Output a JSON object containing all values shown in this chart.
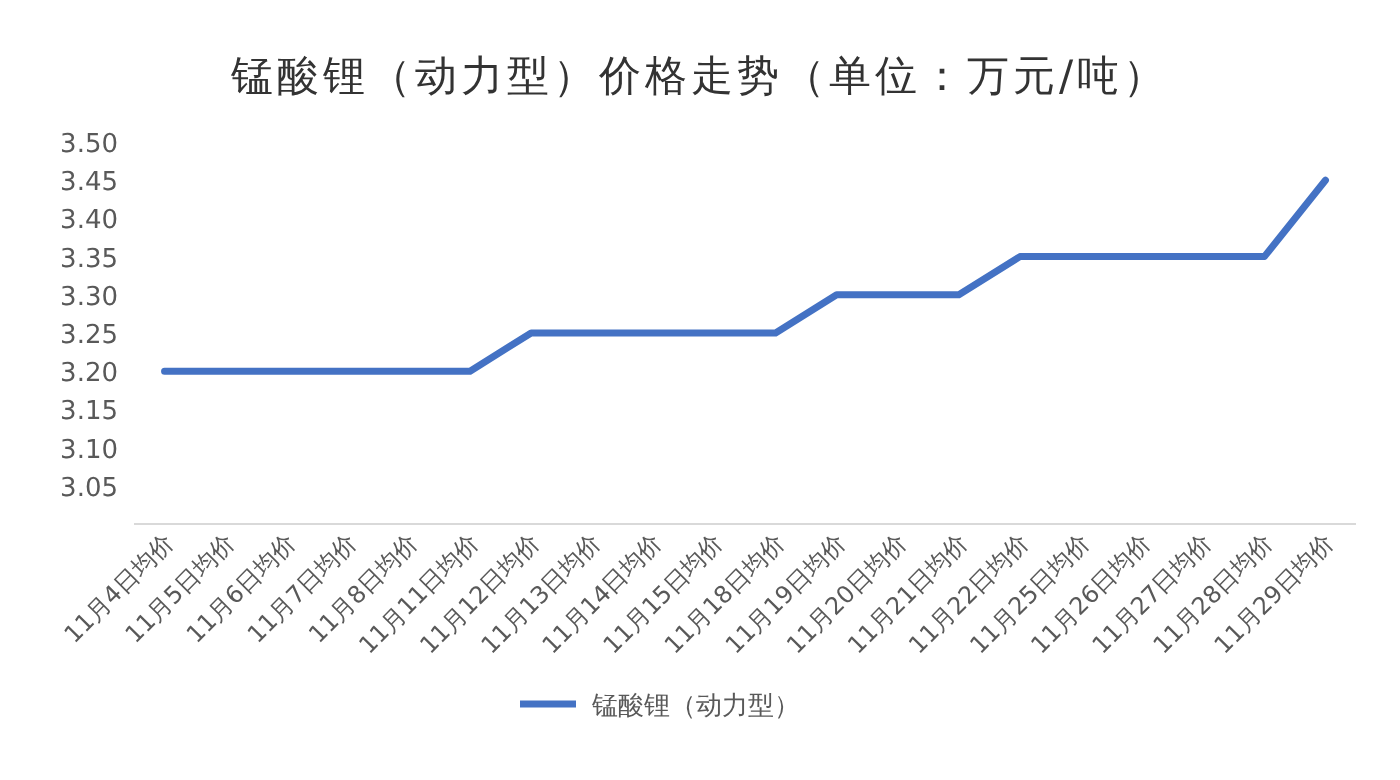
{
  "chart_data": {
    "type": "line",
    "title": "锰酸锂（动力型）价格走势（单位：万元/吨）",
    "categories": [
      "11月4日均价",
      "11月5日均价",
      "11月6日均价",
      "11月7日均价",
      "11月8日均价",
      "11月11日均价",
      "11月12日均价",
      "11月13日均价",
      "11月14日均价",
      "11月15日均价",
      "11月18日均价",
      "11月19日均价",
      "11月20日均价",
      "11月21日均价",
      "11月22日均价",
      "11月25日均价",
      "11月26日均价",
      "11月27日均价",
      "11月28日均价",
      "11月29日均价"
    ],
    "series": [
      {
        "name": "锰酸锂（动力型）",
        "color": "#4472c4",
        "values": [
          3.2,
          3.2,
          3.2,
          3.2,
          3.2,
          3.2,
          3.25,
          3.25,
          3.25,
          3.25,
          3.25,
          3.3,
          3.3,
          3.3,
          3.35,
          3.35,
          3.35,
          3.35,
          3.35,
          3.45
        ]
      }
    ],
    "ylim": [
      3.0,
      3.5
    ],
    "yticks": [
      {
        "value": 3.0,
        "label": null
      },
      {
        "value": 3.05,
        "label": "3.05"
      },
      {
        "value": 3.1,
        "label": "3.10"
      },
      {
        "value": 3.15,
        "label": "3.15"
      },
      {
        "value": 3.2,
        "label": "3.20"
      },
      {
        "value": 3.25,
        "label": "3.25"
      },
      {
        "value": 3.3,
        "label": "3.30"
      },
      {
        "value": 3.35,
        "label": "3.35"
      },
      {
        "value": 3.4,
        "label": "3.40"
      },
      {
        "value": 3.45,
        "label": "3.45"
      },
      {
        "value": 3.5,
        "label": "3.50"
      }
    ],
    "grid": false,
    "legend": "bottom",
    "marker": "none",
    "line_style": "solid"
  }
}
